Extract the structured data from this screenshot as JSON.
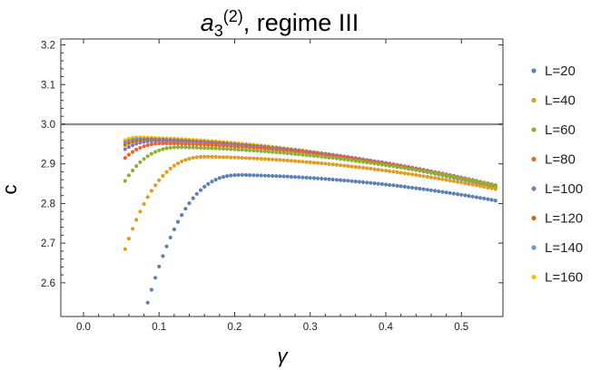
{
  "chart_data": {
    "type": "scatter",
    "title": {
      "main": "a",
      "sub": "3",
      "sup": "(2)",
      "rest": ", regime III"
    },
    "xlabel": "γ",
    "ylabel": "c",
    "xlim": [
      -0.03,
      0.555
    ],
    "ylim": [
      2.515,
      3.215
    ],
    "x_ticks": [
      "0.0",
      "0.1",
      "0.2",
      "0.3",
      "0.4",
      "0.5"
    ],
    "y_ticks": [
      "2.6",
      "2.7",
      "2.8",
      "2.9",
      "3.0",
      "3.1",
      "3.2"
    ],
    "reference_line": {
      "y": 3.0,
      "color": "#8c8c8c"
    },
    "legend_position": "right",
    "grid": false,
    "series": [
      {
        "name": "L=20",
        "color": "#5e81b5",
        "x_start": 0.085,
        "x_end": 0.545,
        "c_min": 2.55,
        "c_peak": 2.872,
        "x_peak": 0.21
      },
      {
        "name": "L=40",
        "color": "#e19c24",
        "x_start": 0.055,
        "x_end": 0.545,
        "c_min": 2.685,
        "c_peak": 2.918,
        "x_peak": 0.165
      },
      {
        "name": "L=60",
        "color": "#8fb032",
        "x_start": 0.055,
        "x_end": 0.545,
        "c_min": 2.857,
        "c_peak": 2.942,
        "x_peak": 0.13
      },
      {
        "name": "L=80",
        "color": "#eb6235",
        "x_start": 0.055,
        "x_end": 0.545,
        "c_min": 2.915,
        "c_peak": 2.952,
        "x_peak": 0.11
      },
      {
        "name": "L=100",
        "color": "#8778b3",
        "x_start": 0.055,
        "x_end": 0.545,
        "c_min": 2.937,
        "c_peak": 2.958,
        "x_peak": 0.1
      },
      {
        "name": "L=120",
        "color": "#c56e1a",
        "x_start": 0.055,
        "x_end": 0.545,
        "c_min": 2.948,
        "c_peak": 2.961,
        "x_peak": 0.09
      },
      {
        "name": "L=140",
        "color": "#5d9ec7",
        "x_start": 0.055,
        "x_end": 0.545,
        "c_min": 2.955,
        "c_peak": 2.963,
        "x_peak": 0.08
      },
      {
        "name": "L=160",
        "color": "#ffbf00",
        "x_start": 0.055,
        "x_end": 0.545,
        "c_min": 2.96,
        "c_peak": 2.967,
        "x_peak": 0.075
      }
    ]
  }
}
